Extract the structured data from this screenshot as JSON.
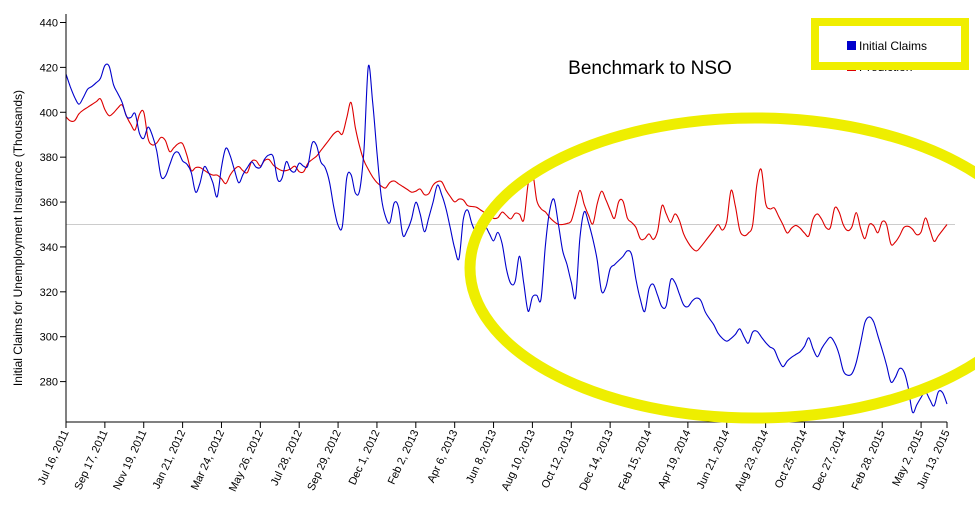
{
  "chart_data": {
    "type": "line",
    "title": "Benchmark to NSO",
    "ylabel": "Initial Claims for Unemployment Insurance (Thousands)",
    "xlabel": "",
    "ylim": [
      262,
      442
    ],
    "y_ticks": [
      280,
      300,
      320,
      340,
      360,
      380,
      400,
      420,
      440
    ],
    "x_tick_labels": [
      "Jul 16, 2011",
      "Sep 17, 2011",
      "Nov 19, 2011",
      "Jan 21, 2012",
      "Mar 24, 2012",
      "May 26, 2012",
      "Jul 28, 2012",
      "Sep 29, 2012",
      "Dec 1, 2012",
      "Feb 2, 2013",
      "Apr 6, 2013",
      "Jun 8, 2013",
      "Aug 10, 2013",
      "Oct 12, 2013",
      "Dec 14, 2013",
      "Feb 15, 2014",
      "Apr 19, 2014",
      "Jun 21, 2014",
      "Aug 23, 2014",
      "Oct 25, 2014",
      "Dec 27, 2014",
      "Feb 28, 2015",
      "May 2, 2015",
      "Jun 13, 2015"
    ],
    "x_tick_index": [
      0,
      9,
      18,
      27,
      36,
      45,
      54,
      63,
      72,
      81,
      90,
      99,
      108,
      117,
      126,
      135,
      144,
      153,
      162,
      171,
      180,
      189,
      198,
      204
    ],
    "grid": false,
    "legend_position": "top-right",
    "reference_line": 350,
    "series": [
      {
        "name": "Initial Claims",
        "color": "#0000cc",
        "values": [
          417,
          408,
          403,
          410,
          412,
          415,
          424,
          411,
          406,
          396,
          400,
          386,
          394,
          386,
          368,
          376,
          384,
          378,
          376,
          362,
          376,
          372,
          362,
          385,
          380,
          368,
          374,
          378,
          374,
          380,
          382,
          366,
          378,
          372,
          378,
          374,
          390,
          378,
          374,
          356,
          344,
          378,
          364,
          366,
          425,
          388,
          356,
          350,
          364,
          344,
          350,
          362,
          346,
          356,
          368,
          360,
          346,
          332,
          360,
          350,
          344,
          350,
          342,
          348,
          330,
          320,
          338,
          310,
          320,
          316,
          354,
          362,
          340,
          330,
          316,
          358,
          350,
          338,
          316,
          330,
          333,
          336,
          340,
          322,
          310,
          326,
          318,
          310,
          328,
          320,
          312,
          316,
          318,
          310,
          306,
          300,
          298,
          300,
          304,
          296,
          304,
          300,
          296,
          294,
          286,
          290,
          292,
          294,
          300,
          290,
          296,
          300,
          296,
          284,
          282,
          290,
          306,
          310,
          300,
          290,
          278,
          286,
          284,
          266,
          272,
          276,
          268,
          278,
          270
        ]
      },
      {
        "name": "Prediction",
        "color": "#dd0000",
        "values": [
          398,
          395,
          400,
          402,
          404,
          406,
          398,
          400,
          404,
          396,
          392,
          404,
          385,
          386,
          390,
          382,
          386,
          386,
          374,
          376,
          374,
          372,
          372,
          368,
          374,
          376,
          372,
          380,
          376,
          380,
          376,
          374,
          374,
          376,
          372,
          378,
          380,
          384,
          388,
          392,
          390,
          406,
          388,
          378,
          372,
          368,
          366,
          370,
          368,
          366,
          364,
          366,
          362,
          368,
          370,
          364,
          360,
          362,
          358,
          358,
          356,
          354,
          352,
          356,
          352,
          356,
          352,
          378,
          358,
          356,
          352,
          350,
          350,
          352,
          366,
          356,
          350,
          366,
          360,
          352,
          364,
          352,
          350,
          342,
          346,
          342,
          360,
          350,
          356,
          346,
          340,
          338,
          342,
          346,
          350,
          346,
          368,
          348,
          344,
          350,
          380,
          356,
          358,
          352,
          346,
          350,
          348,
          344,
          356,
          352,
          346,
          360,
          350,
          346,
          356,
          342,
          352,
          346,
          354,
          340,
          344,
          350,
          348,
          344,
          354,
          342,
          346,
          350
        ]
      }
    ]
  }
}
